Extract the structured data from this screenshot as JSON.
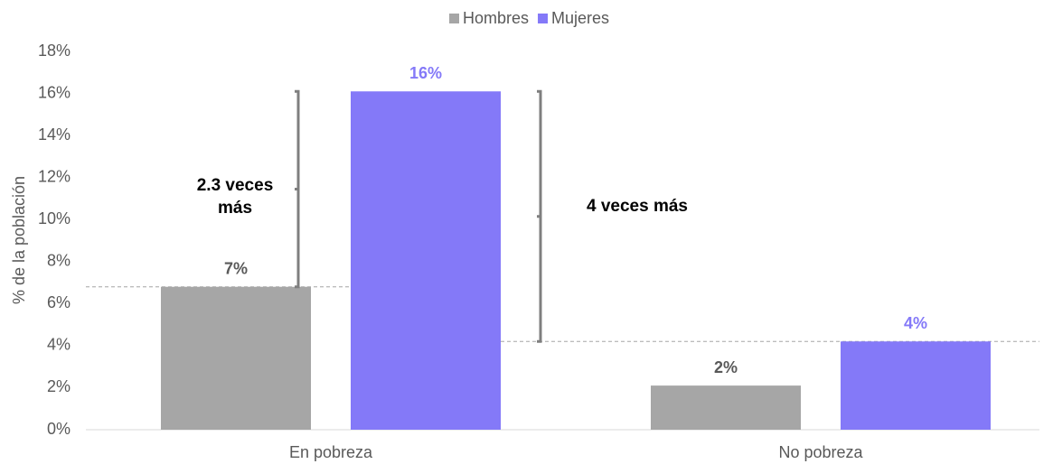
{
  "chart_data": {
    "type": "bar",
    "categories": [
      "En pobreza",
      "No pobreza"
    ],
    "y_axis_label": "% de la población",
    "series": [
      {
        "name": "Hombres",
        "color": "#a6a6a6",
        "label_color": "#595959",
        "values": [
          6.8,
          2.1
        ],
        "value_labels": [
          "7%",
          "2%"
        ]
      },
      {
        "name": "Mujeres",
        "color": "#8479f8",
        "label_color": "#8479f8",
        "values": [
          16.1,
          4.2
        ],
        "value_labels": [
          "16%",
          "4%"
        ]
      }
    ],
    "ylim": [
      0,
      18
    ],
    "yticks": [
      {
        "value": 0,
        "label": "0%"
      },
      {
        "value": 2,
        "label": "2%"
      },
      {
        "value": 4,
        "label": "4%"
      },
      {
        "value": 6,
        "label": "6%"
      },
      {
        "value": 8,
        "label": "8%"
      },
      {
        "value": 10,
        "label": "10%"
      },
      {
        "value": 12,
        "label": "12%"
      },
      {
        "value": 14,
        "label": "14%"
      },
      {
        "value": 16,
        "label": "16%"
      },
      {
        "value": 18,
        "label": "18%"
      }
    ],
    "annotations": [
      "2.3 veces más",
      "4 veces más"
    ],
    "legend": "top",
    "grid": false
  }
}
